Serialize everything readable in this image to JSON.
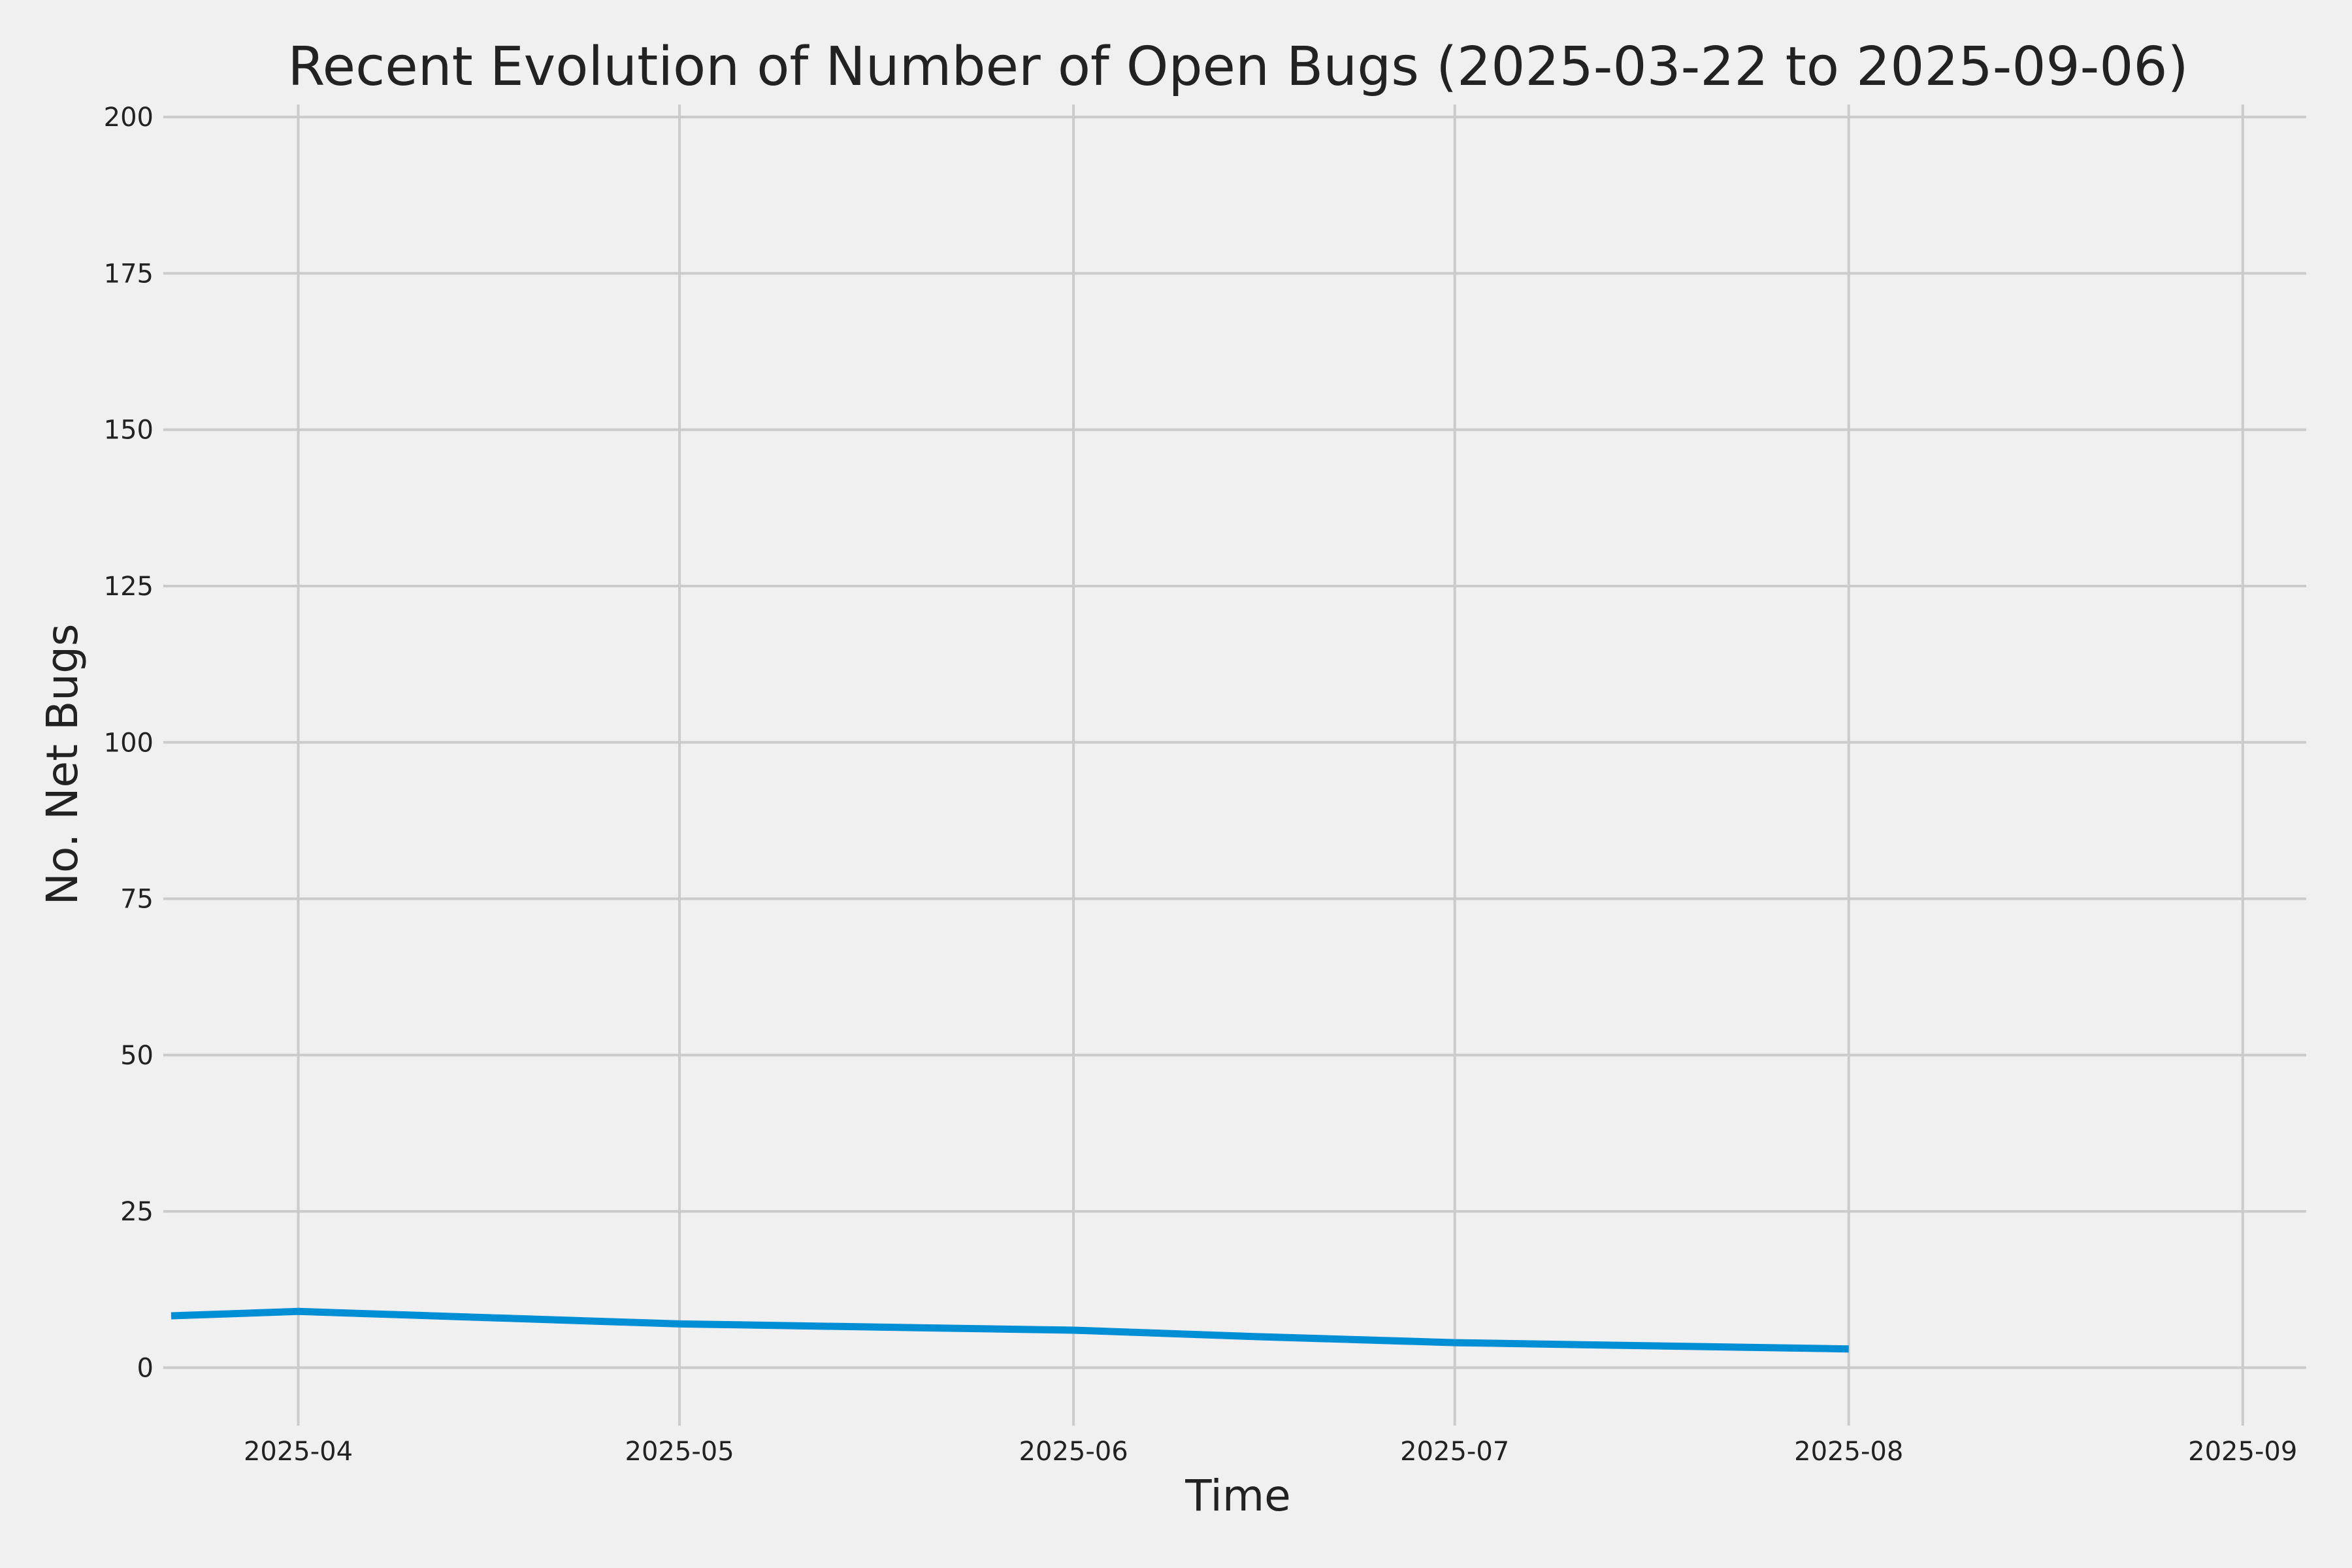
{
  "chart_data": {
    "type": "line",
    "title": "Recent Evolution of Number of Open Bugs (2025-03-22 to 2025-09-06)",
    "xlabel": "Time",
    "ylabel": "No. Net Bugs",
    "xlim": [
      "2025-03-22",
      "2025-09-06"
    ],
    "ylim": [
      -8,
      202
    ],
    "grid": true,
    "legend": "none",
    "x_ticks": [
      "2025-04-01",
      "2025-05-01",
      "2025-06-01",
      "2025-07-01",
      "2025-08-01",
      "2025-09-01"
    ],
    "x_tick_labels": [
      "2025-04",
      "2025-05",
      "2025-06",
      "2025-07",
      "2025-08",
      "2025-09"
    ],
    "y_ticks": [
      0,
      25,
      50,
      75,
      100,
      125,
      150,
      175,
      200
    ],
    "y_tick_labels": [
      "0",
      "25",
      "50",
      "75",
      "100",
      "125",
      "150",
      "175",
      "200"
    ],
    "series": [
      {
        "color": "#008fd5",
        "x": [
          "2025-03-22",
          "2025-04-01",
          "2025-05-01",
          "2025-06-01",
          "2025-06-15",
          "2025-07-01",
          "2025-08-01"
        ],
        "y": [
          8.3,
          9,
          7,
          6,
          5,
          4,
          3
        ]
      }
    ]
  }
}
